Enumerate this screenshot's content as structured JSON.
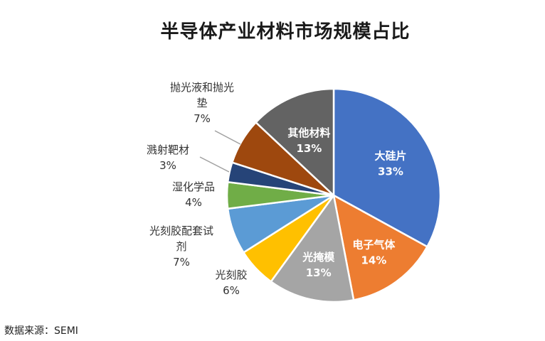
{
  "chart_data": {
    "type": "pie",
    "title": "半导体产业材料市场规模占比",
    "slices": [
      {
        "name": "大硅片",
        "value": 33,
        "label": "33%",
        "color": "#4472C4"
      },
      {
        "name": "电子气体",
        "value": 14,
        "label": "14%",
        "color": "#ED7D31"
      },
      {
        "name": "光掩模",
        "value": 13,
        "label": "13%",
        "color": "#A5A5A5"
      },
      {
        "name": "光刻胶",
        "value": 6,
        "label": "6%",
        "color": "#FFC000"
      },
      {
        "name": "光刻胶配套试剂",
        "value": 7,
        "label": "7%",
        "color": "#5B9BD5"
      },
      {
        "name": "湿化学品",
        "value": 4,
        "label": "4%",
        "color": "#70AD47"
      },
      {
        "name": "溅射靶材",
        "value": 3,
        "label": "3%",
        "color": "#264478"
      },
      {
        "name": "抛光液和抛光垫",
        "value": 7,
        "label": "7%",
        "color": "#9E480E"
      },
      {
        "name": "其他材料",
        "value": 13,
        "label": "13%",
        "color": "#636363"
      }
    ],
    "legend": "none",
    "label_placement": "mixed: inside for large slices, outside with leader lines for small slices"
  },
  "source": "数据来源：SEMI"
}
